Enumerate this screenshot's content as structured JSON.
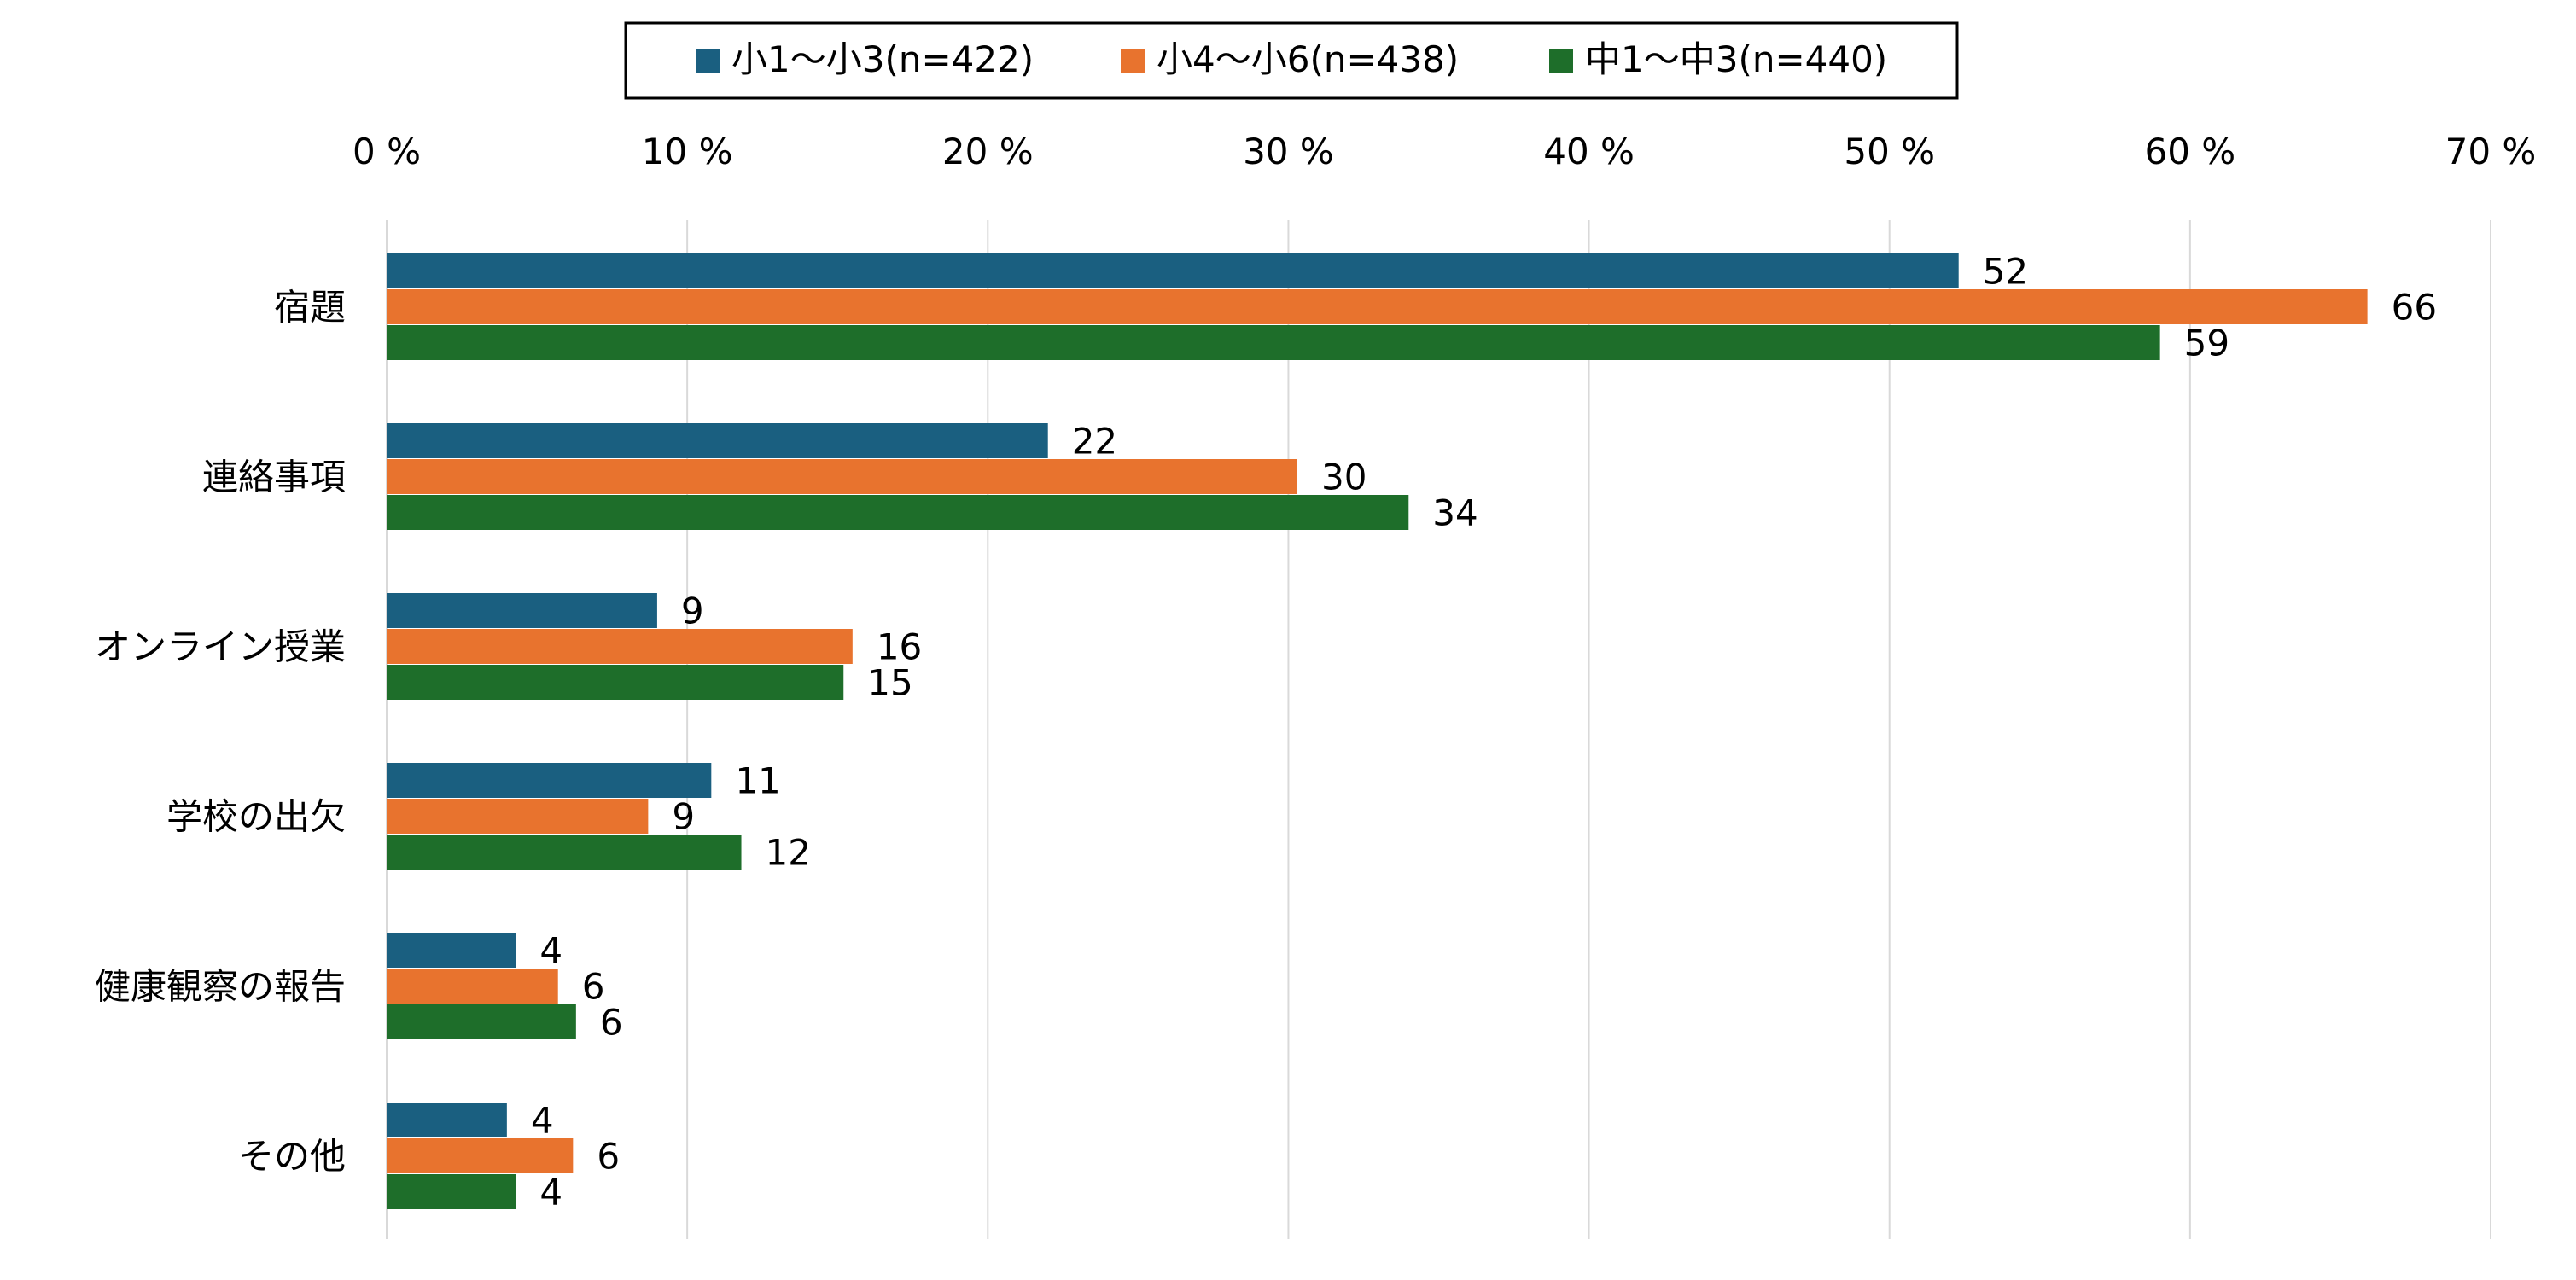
{
  "chart_data": {
    "type": "bar",
    "orientation": "horizontal",
    "title": "",
    "xlabel": "",
    "ylabel": "",
    "xlim": [
      0,
      70
    ],
    "x_ticks": [
      0,
      10,
      20,
      30,
      40,
      50,
      60,
      70
    ],
    "x_tick_labels": [
      "0 %",
      "10 %",
      "20 %",
      "30 %",
      "40 %",
      "50 %",
      "60 %",
      "70 %"
    ],
    "grid": true,
    "legend_position": "top-center",
    "categories": [
      "宿題",
      "連絡事項",
      "オンライン授業",
      "学校の出欠",
      "健康観察の報告",
      "その他"
    ],
    "series": [
      {
        "name": "小1〜小3(n=422)",
        "color": "#1a5f80",
        "values": [
          52.3,
          22.0,
          9.0,
          10.8,
          4.3,
          4.0
        ],
        "labels": [
          "52",
          "22",
          "9",
          "11",
          "4",
          "4"
        ]
      },
      {
        "name": "小4〜小6(n=438)",
        "color": "#e8732e",
        "values": [
          65.9,
          30.3,
          15.5,
          8.7,
          5.7,
          6.2
        ],
        "labels": [
          "66",
          "30",
          "16",
          "9",
          "6",
          "6"
        ]
      },
      {
        "name": "中1〜中3(n=440)",
        "color": "#1e6e2a",
        "values": [
          59.0,
          34.0,
          15.2,
          11.8,
          6.3,
          4.3
        ],
        "labels": [
          "59",
          "34",
          "15",
          "12",
          "6",
          "4"
        ]
      }
    ]
  }
}
